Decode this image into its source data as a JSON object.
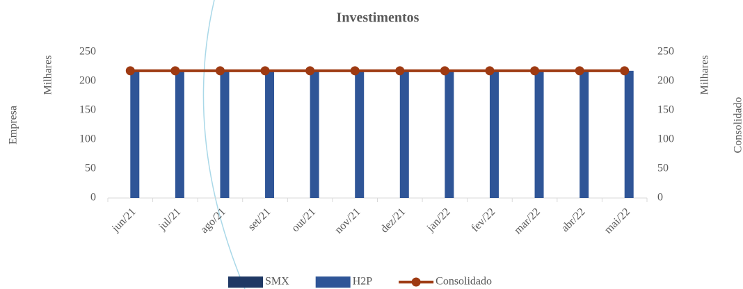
{
  "chart_data": {
    "type": "bar",
    "title": "Investimentos",
    "ylabel": "Empresa",
    "y_display_units": "Milhares",
    "y2label": "Consolidado",
    "y2_display_units": "Milhares",
    "categories": [
      "jun/21",
      "jul/21",
      "ago/21",
      "set/21",
      "out/21",
      "nov/21",
      "dez/21",
      "jan/22",
      "fev/22",
      "mar/22",
      "abr/22",
      "mai/22"
    ],
    "series": [
      {
        "name": "SMX",
        "type": "bar",
        "color": "#1f3864",
        "values": [
          0,
          0,
          0,
          0,
          0,
          0,
          0,
          0,
          0,
          0,
          0,
          0
        ]
      },
      {
        "name": "H2P",
        "type": "bar",
        "color": "#2f5597",
        "values": [
          218,
          218,
          218,
          218,
          218,
          218,
          218,
          218,
          218,
          218,
          218,
          218
        ]
      },
      {
        "name": "Consolidado",
        "type": "line",
        "axis": "y2",
        "color": "#9e3a12",
        "values": [
          218,
          218,
          218,
          218,
          218,
          218,
          218,
          218,
          218,
          218,
          218,
          218
        ]
      }
    ],
    "ylim": [
      0,
      250
    ],
    "yticks": [
      0,
      50,
      100,
      150,
      200,
      250
    ],
    "y2lim": [
      0,
      250
    ],
    "y2ticks": [
      0,
      50,
      100,
      150,
      200,
      250
    ],
    "grid": false,
    "legend": "bottom"
  }
}
